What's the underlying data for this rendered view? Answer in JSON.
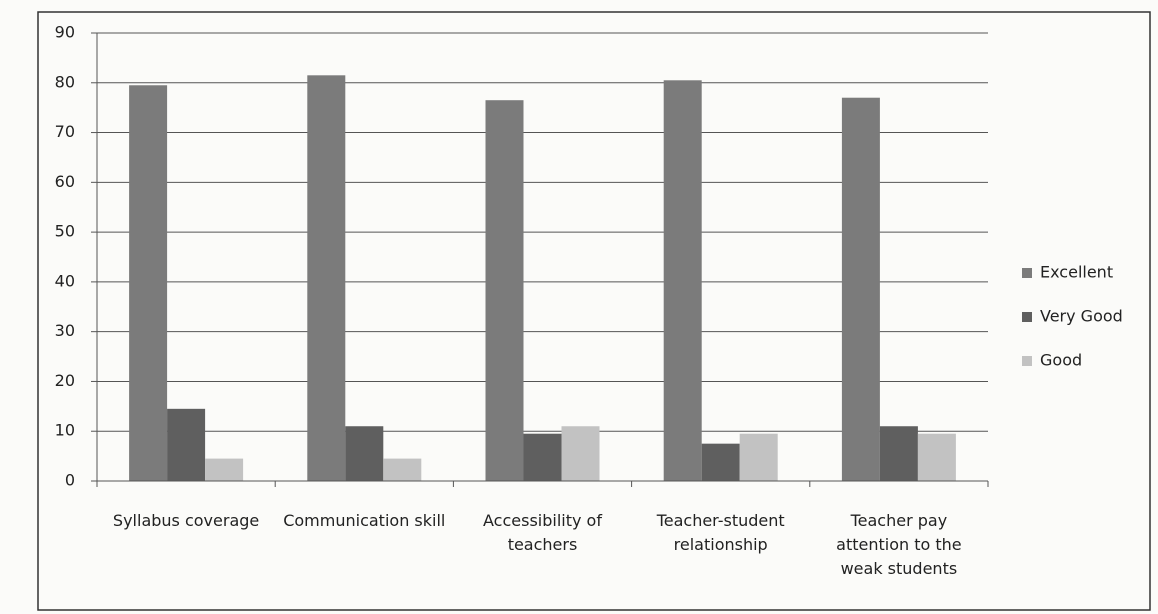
{
  "chart_data": {
    "type": "bar",
    "categories": [
      "Syllabus coverage",
      "Communication skill",
      "Accessibility of teachers",
      "Teacher-student relationship",
      "Teacher pay attention to the weak students"
    ],
    "series": [
      {
        "name": "Excellent",
        "color": "#7b7b7b",
        "values": [
          79.5,
          81.5,
          76.5,
          80.5,
          77
        ]
      },
      {
        "name": "Very Good",
        "color": "#5f5f5f",
        "values": [
          14.5,
          11,
          9.5,
          7.5,
          11
        ]
      },
      {
        "name": "Good",
        "color": "#c2c2c2",
        "values": [
          4.5,
          4.5,
          11,
          9.5,
          9.5
        ]
      }
    ],
    "ylim": [
      0,
      90
    ],
    "yticks": [
      0,
      10,
      20,
      30,
      40,
      50,
      60,
      70,
      80,
      90
    ],
    "grid": true,
    "legend": "right"
  }
}
